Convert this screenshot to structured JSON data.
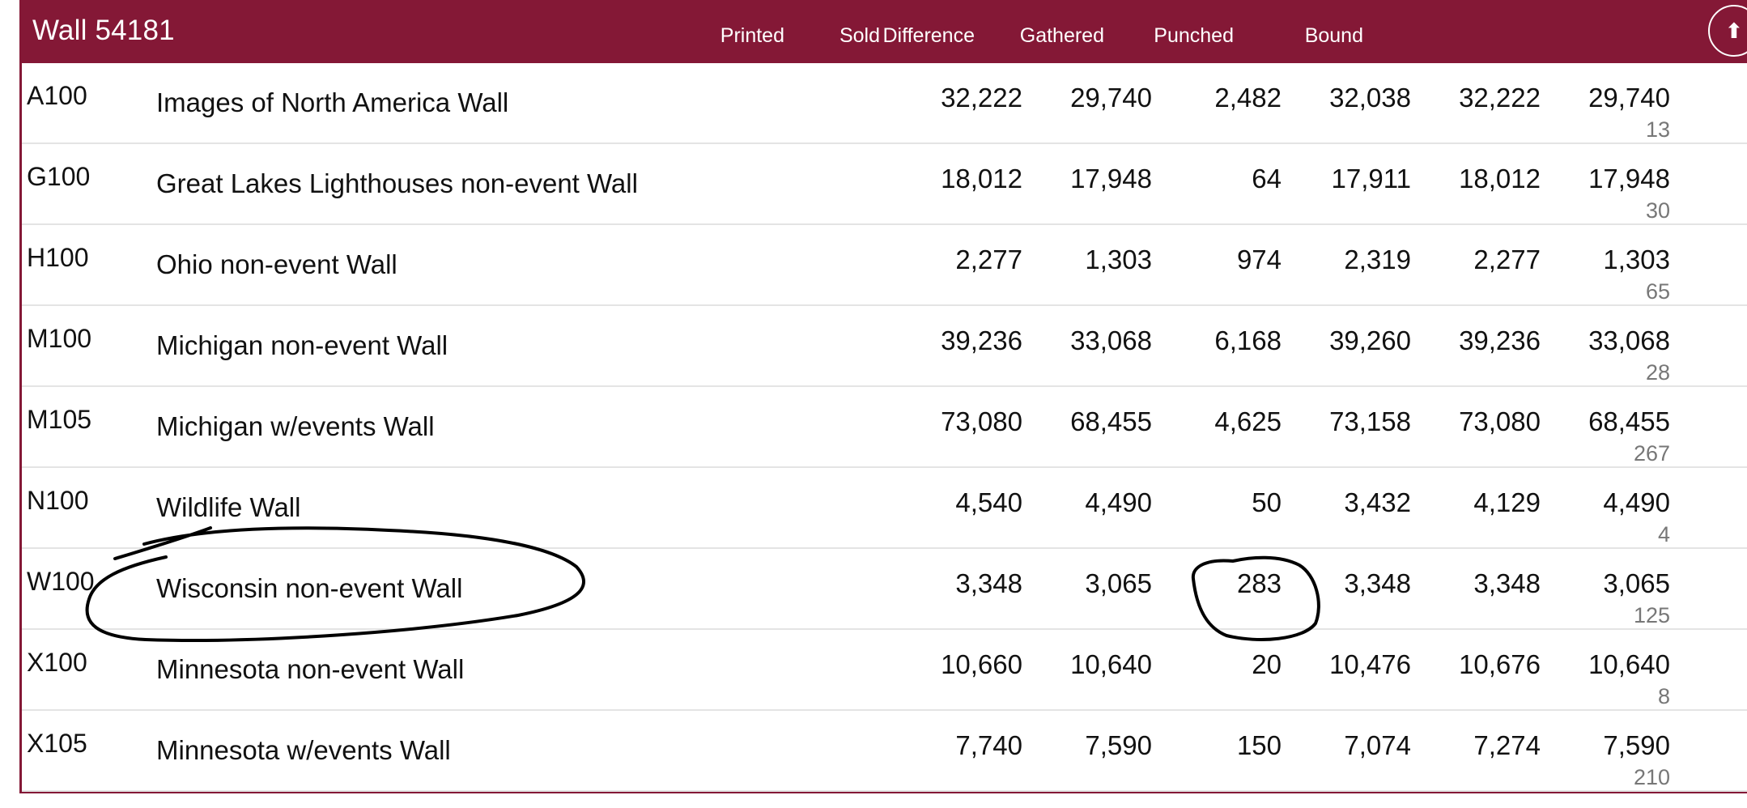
{
  "header": {
    "title": "Wall  54181",
    "columns": [
      "Printed",
      "Sold",
      "Difference",
      "Gathered",
      "Punched",
      "Bound"
    ],
    "up_button_glyph": "⬆"
  },
  "rows": [
    {
      "code": "A100",
      "name": "Images of North America Wall",
      "printed": "32,222",
      "sold": "29,740",
      "difference": "2,482",
      "gathered": "32,038",
      "punched": "32,222",
      "bound": "29,740",
      "bound_sub": "13"
    },
    {
      "code": "G100",
      "name": "Great Lakes Lighthouses non-event Wall",
      "printed": "18,012",
      "sold": "17,948",
      "difference": "64",
      "gathered": "17,911",
      "punched": "18,012",
      "bound": "17,948",
      "bound_sub": "30"
    },
    {
      "code": "H100",
      "name": "Ohio non-event Wall",
      "printed": "2,277",
      "sold": "1,303",
      "difference": "974",
      "gathered": "2,319",
      "punched": "2,277",
      "bound": "1,303",
      "bound_sub": "65"
    },
    {
      "code": "M100",
      "name": "Michigan non-event Wall",
      "printed": "39,236",
      "sold": "33,068",
      "difference": "6,168",
      "gathered": "39,260",
      "punched": "39,236",
      "bound": "33,068",
      "bound_sub": "28"
    },
    {
      "code": "M105",
      "name": "Michigan w/events Wall",
      "printed": "73,080",
      "sold": "68,455",
      "difference": "4,625",
      "gathered": "73,158",
      "punched": "73,080",
      "bound": "68,455",
      "bound_sub": "267"
    },
    {
      "code": "N100",
      "name": "Wildlife Wall",
      "printed": "4,540",
      "sold": "4,490",
      "difference": "50",
      "gathered": "3,432",
      "punched": "4,129",
      "bound": "4,490",
      "bound_sub": "4"
    },
    {
      "code": "W100",
      "name": "Wisconsin non-event Wall",
      "printed": "3,348",
      "sold": "3,065",
      "difference": "283",
      "gathered": "3,348",
      "punched": "3,348",
      "bound": "3,065",
      "bound_sub": "125"
    },
    {
      "code": "X100",
      "name": "Minnesota non-event Wall",
      "printed": "10,660",
      "sold": "10,640",
      "difference": "20",
      "gathered": "10,476",
      "punched": "10,676",
      "bound": "10,640",
      "bound_sub": "8"
    },
    {
      "code": "X105",
      "name": "Minnesota w/events Wall",
      "printed": "7,740",
      "sold": "7,590",
      "difference": "150",
      "gathered": "7,074",
      "punched": "7,274",
      "bound": "7,590",
      "bound_sub": "210"
    }
  ],
  "colors": {
    "header_bg": "#841836",
    "header_text": "#ffffff",
    "row_divider": "#e4e4e4",
    "sub_text": "#777777",
    "annotation_ink": "#000000"
  },
  "annotations": {
    "circled_row_code": "W100",
    "circled_cell": "difference"
  }
}
